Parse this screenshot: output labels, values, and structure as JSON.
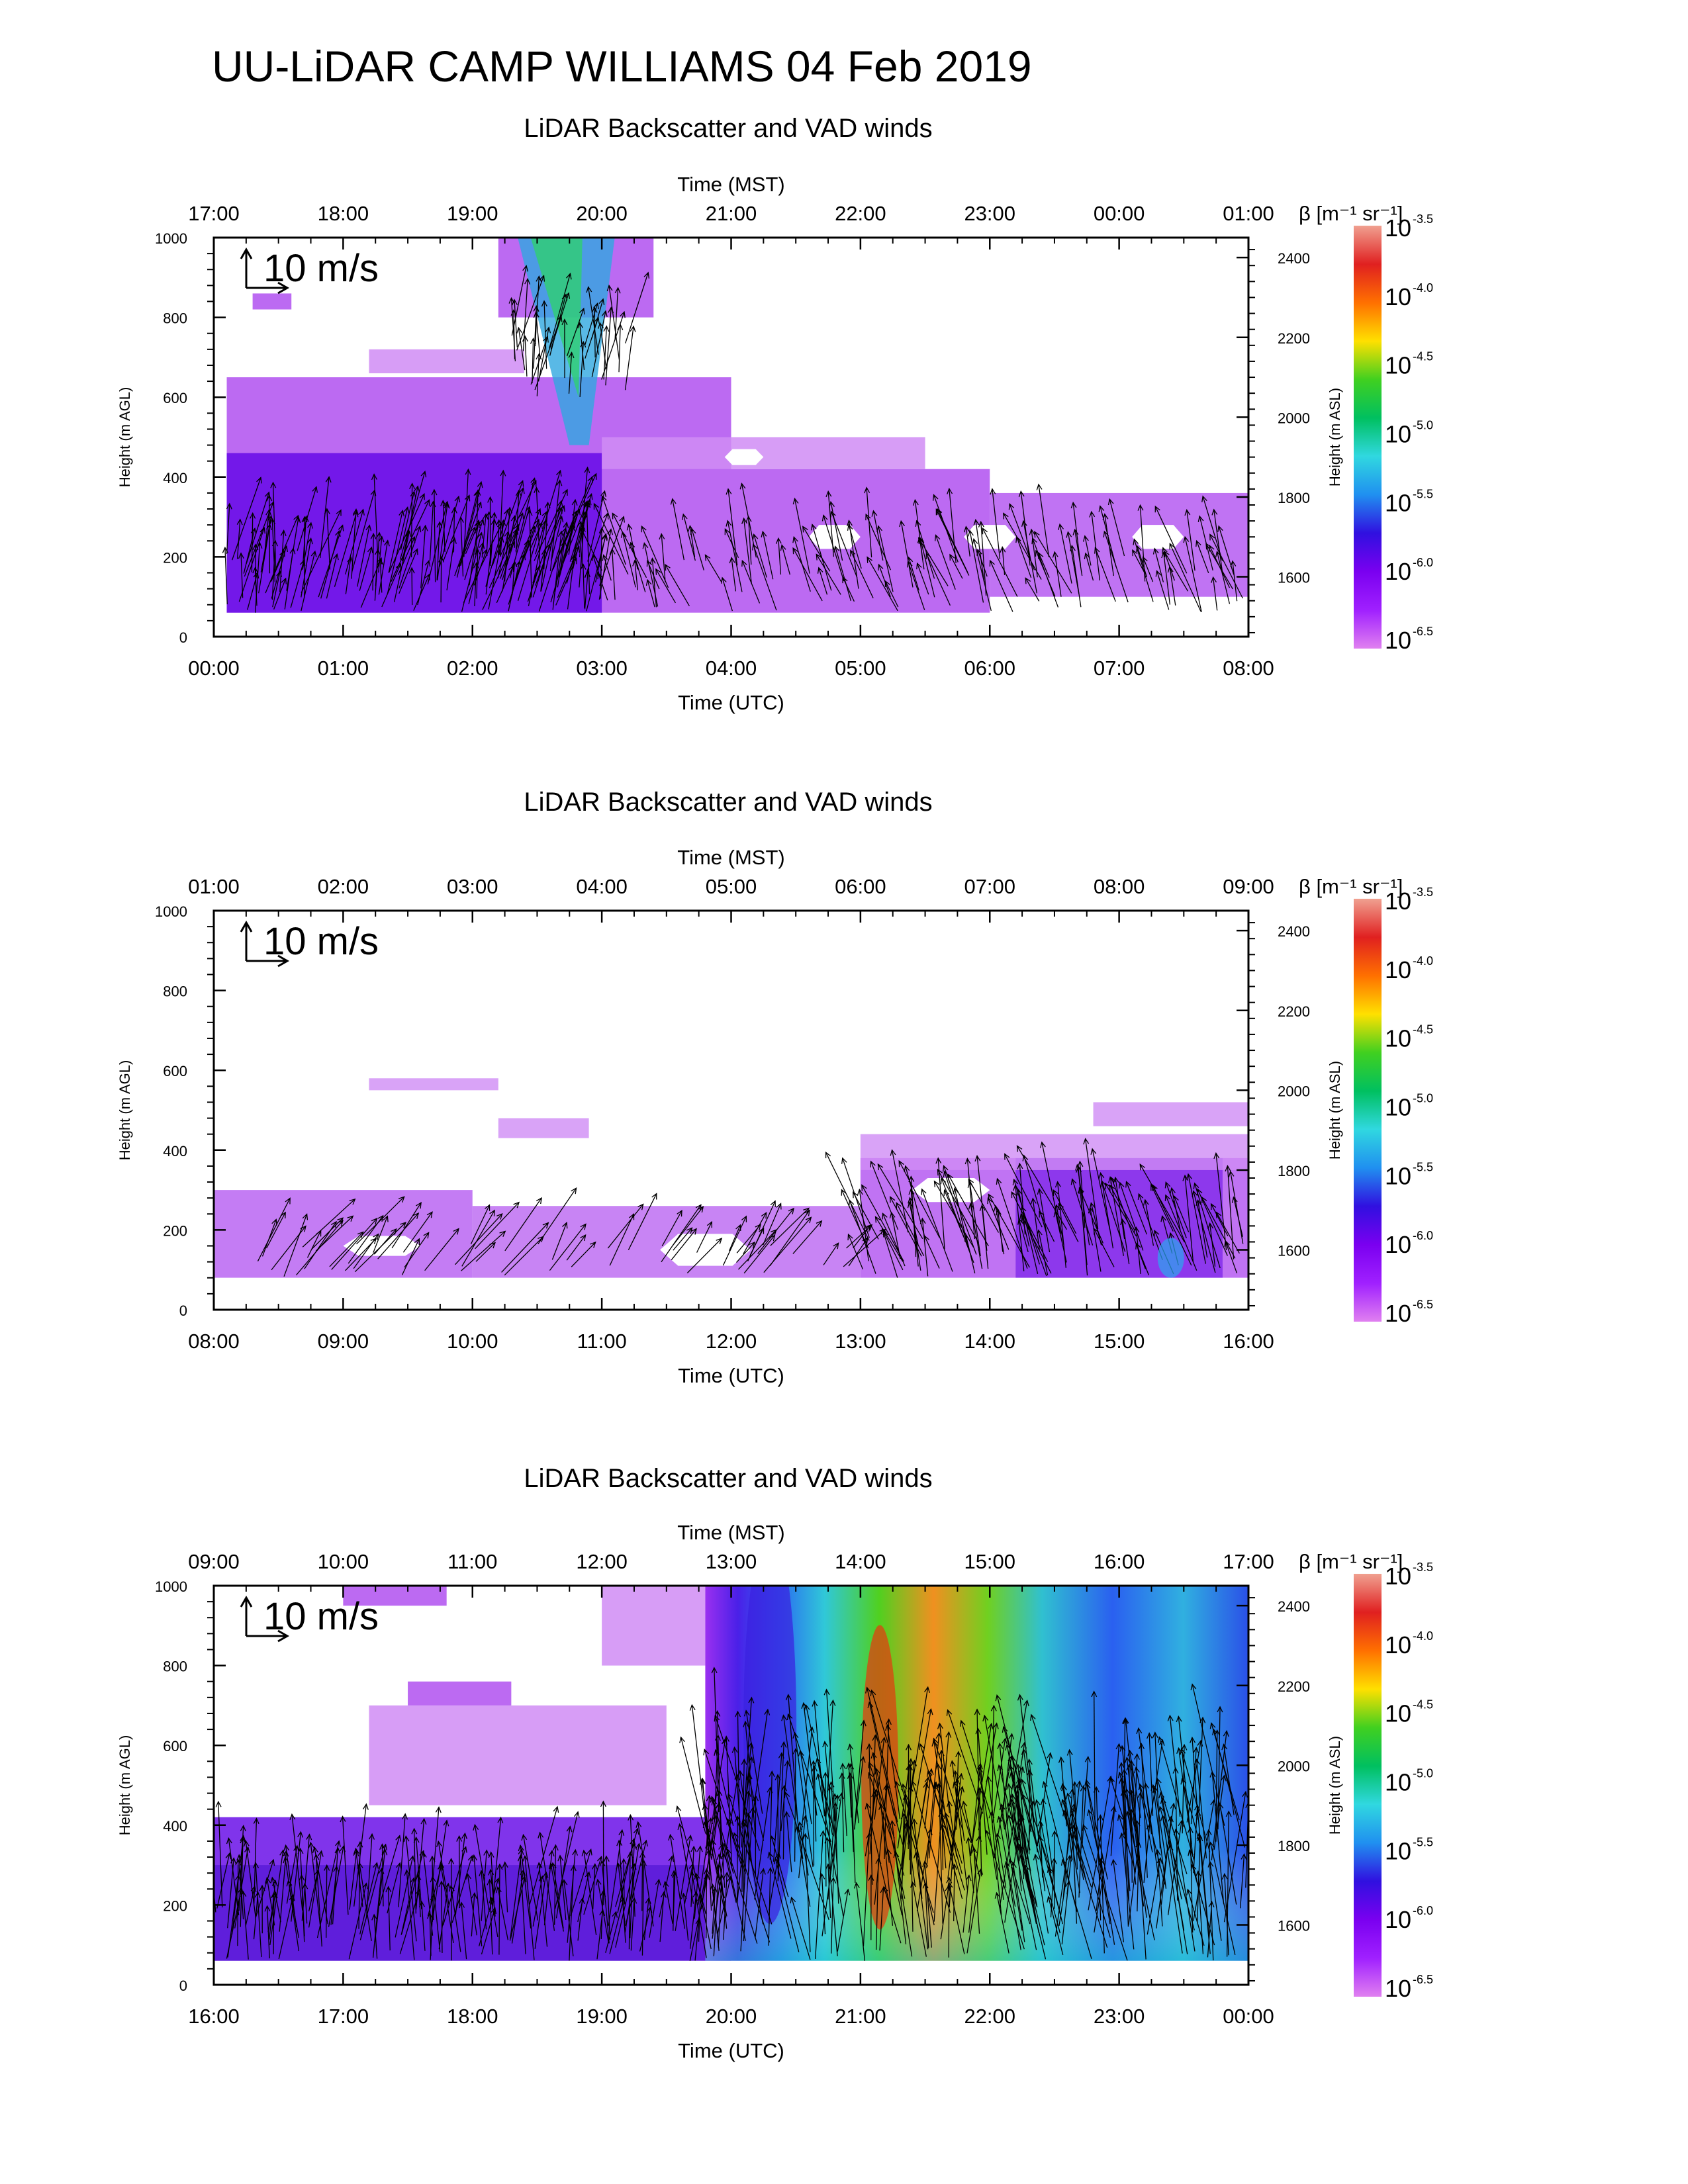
{
  "main_title": "UU-LiDAR CAMP WILLIAMS 04 Feb 2019",
  "colorbar": {
    "label": "β [m⁻¹ sr⁻¹]",
    "base": "10",
    "exponents": [
      "-3.5",
      "-4.0",
      "-4.5",
      "-5.0",
      "-5.5",
      "-6.0",
      "-6.5"
    ],
    "colors": [
      "#f0a090",
      "#e02020",
      "#ff7000",
      "#ffe000",
      "#40d020",
      "#00c060",
      "#30d8e0",
      "#2090f0",
      "#3010e0",
      "#7a00f0",
      "#a020ff",
      "#e080f0"
    ]
  },
  "vector_scale_label": "10 m/s",
  "colors": {
    "backscatter_low": "#b050f0",
    "backscatter_mid": "#6a10e8",
    "backscatter_pale": "#d08cf5",
    "wind_arrow": "#000000"
  },
  "chart_data": [
    {
      "type": "heatmap",
      "title": "LiDAR Backscatter and VAD winds",
      "xlabel": "Time (UTC)",
      "x2label": "Time (MST)",
      "ylabel": "Height (m AGL)",
      "y2label": "Height (m ASL)",
      "xticks": [
        "00:00",
        "01:00",
        "02:00",
        "03:00",
        "04:00",
        "05:00",
        "06:00",
        "07:00",
        "08:00"
      ],
      "x2ticks": [
        "17:00",
        "18:00",
        "19:00",
        "20:00",
        "21:00",
        "22:00",
        "23:00",
        "00:00",
        "01:00"
      ],
      "yticks": [
        "0",
        "200",
        "400",
        "600",
        "800",
        "1000"
      ],
      "y2ticks": [
        "1600",
        "1800",
        "2000",
        "2200",
        "2400"
      ],
      "ylim": [
        0,
        1000
      ],
      "y2lim": [
        1450,
        2450
      ],
      "xlim_hours": [
        0,
        8
      ],
      "regime": "early"
    },
    {
      "type": "heatmap",
      "title": "LiDAR Backscatter and VAD winds",
      "xlabel": "Time (UTC)",
      "x2label": "Time (MST)",
      "ylabel": "Height (m AGL)",
      "y2label": "Height (m ASL)",
      "xticks": [
        "08:00",
        "09:00",
        "10:00",
        "11:00",
        "12:00",
        "13:00",
        "14:00",
        "15:00",
        "16:00"
      ],
      "x2ticks": [
        "01:00",
        "02:00",
        "03:00",
        "04:00",
        "05:00",
        "06:00",
        "07:00",
        "08:00",
        "09:00"
      ],
      "yticks": [
        "0",
        "200",
        "400",
        "600",
        "800",
        "1000"
      ],
      "y2ticks": [
        "1600",
        "1800",
        "2000",
        "2200",
        "2400"
      ],
      "ylim": [
        0,
        1000
      ],
      "y2lim": [
        1450,
        2450
      ],
      "xlim_hours": [
        8,
        16
      ],
      "regime": "shallow"
    },
    {
      "type": "heatmap",
      "title": "LiDAR Backscatter and VAD winds",
      "xlabel": "Time (UTC)",
      "x2label": "Time (MST)",
      "ylabel": "Height (m AGL)",
      "y2label": "Height (m ASL)",
      "xticks": [
        "16:00",
        "17:00",
        "18:00",
        "19:00",
        "20:00",
        "21:00",
        "22:00",
        "23:00",
        "00:00"
      ],
      "x2ticks": [
        "09:00",
        "10:00",
        "11:00",
        "12:00",
        "13:00",
        "14:00",
        "15:00",
        "16:00",
        "17:00"
      ],
      "yticks": [
        "0",
        "200",
        "400",
        "600",
        "800",
        "1000"
      ],
      "y2ticks": [
        "1600",
        "1800",
        "2000",
        "2200",
        "2400"
      ],
      "ylim": [
        0,
        1000
      ],
      "y2lim": [
        1450,
        2450
      ],
      "xlim_hours": [
        16,
        24
      ],
      "regime": "deep"
    }
  ]
}
